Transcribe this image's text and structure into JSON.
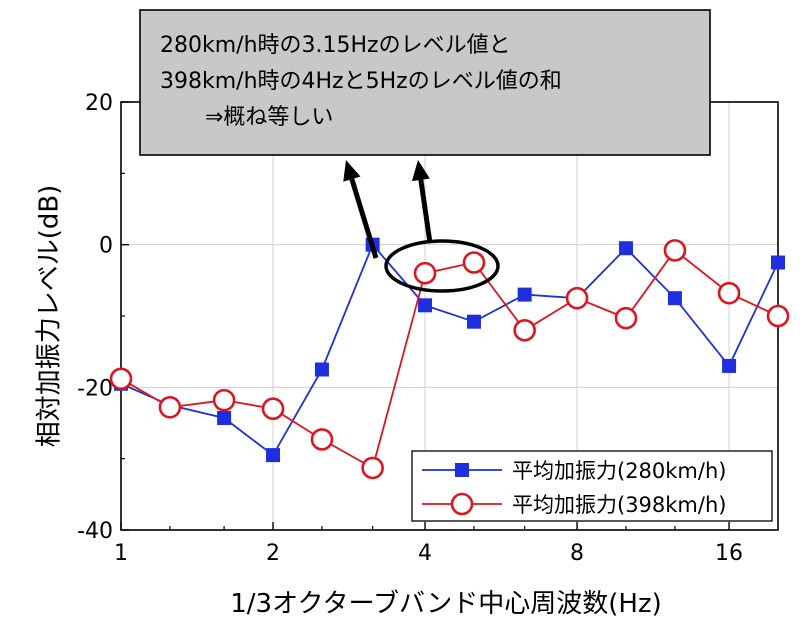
{
  "chart_data": {
    "type": "line",
    "xlabel": "1/3オクターブバンド中心周波数(Hz)",
    "ylabel": "相対加振力レベル(dB)",
    "x_scale": "log2",
    "xlim": [
      1,
      20
    ],
    "ylim": [
      -40,
      20
    ],
    "x_ticks": [
      1,
      2,
      4,
      8,
      16
    ],
    "x_tick_labels": [
      "1",
      "2",
      "4",
      "8",
      "16"
    ],
    "y_ticks": [
      -40,
      -20,
      0,
      20
    ],
    "y_tick_labels": [
      "-40",
      "-20",
      "0",
      "20"
    ],
    "x": [
      1,
      1.25,
      1.6,
      2,
      2.5,
      3.15,
      4,
      5,
      6.3,
      8,
      10,
      12.5,
      16,
      20
    ],
    "series": [
      {
        "name": "平均加振力(280km/h)",
        "color": "#1f2fe0",
        "marker": "filled-square",
        "values": [
          -19.5,
          -22.5,
          -24.3,
          -29.5,
          -17.5,
          0.0,
          -8.5,
          -10.8,
          -7.0,
          -7.5,
          -0.5,
          -7.5,
          -17.0,
          -2.5
        ]
      },
      {
        "name": "平均加振力(398km/h)",
        "color": "#e0141e",
        "marker": "open-circle",
        "values": [
          -18.8,
          -22.8,
          -21.8,
          -23.0,
          -27.3,
          -31.3,
          -4.0,
          -2.5,
          -12.0,
          -7.5,
          -10.3,
          -0.8,
          -6.8,
          -10.0
        ]
      }
    ],
    "legend_position": "bottom-right",
    "callout": {
      "lines": [
        "280km/h時の3.15Hzのレベル値と",
        "398km/h時の4Hzと5Hzのレベル値の和",
        "⇒概ね等しい"
      ],
      "box_color": "#c8c8c8"
    }
  }
}
